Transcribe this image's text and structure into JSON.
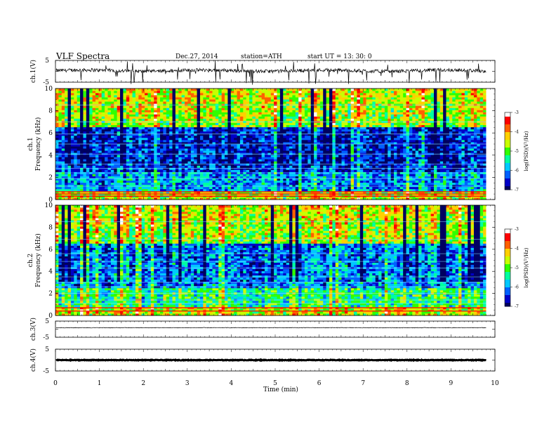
{
  "header": {
    "title": "VLF  Spectra",
    "date": "Dec.27, 2014",
    "station": "station=ATH",
    "start": "start  UT  =   13: 30: 0"
  },
  "chart_data": [
    {
      "type": "line",
      "panel": "ch1-waveform",
      "ylabel": "ch.1(V)",
      "yticks": [
        "5",
        "-5"
      ],
      "ylim": [
        -5,
        5
      ],
      "description_level": "noisy trace near +1 with downward spikes"
    },
    {
      "type": "heatmap",
      "panel": "ch1-spectrogram",
      "ylabel": [
        "ch.1",
        "Frequency  (kHz)"
      ],
      "yticks": [
        "0",
        "2",
        "4",
        "6",
        "8",
        "10"
      ],
      "ylim": [
        0,
        10
      ],
      "colorbar": {
        "label": "log(PSD)(V²/Hz)",
        "ticks": [
          "-3",
          "-4",
          "-5",
          "-6",
          "-7"
        ],
        "range": [
          -7,
          -3
        ]
      }
    },
    {
      "type": "heatmap",
      "panel": "ch2-spectrogram",
      "ylabel": [
        "ch.2",
        "Frequency  (kHz)"
      ],
      "yticks": [
        "0",
        "2",
        "4",
        "6",
        "8",
        "10"
      ],
      "ylim": [
        0,
        10
      ],
      "colorbar": {
        "label": "log(PSD)(V²/Hz)",
        "ticks": [
          "-3",
          "-4",
          "-5",
          "-6",
          "-7"
        ],
        "range": [
          -7,
          -3
        ]
      }
    },
    {
      "type": "line",
      "panel": "ch3-waveform",
      "ylabel": "ch.3(V)",
      "yticks": [
        "5",
        "-5"
      ],
      "ylim": [
        -5,
        5
      ]
    },
    {
      "type": "line",
      "panel": "ch4-waveform",
      "ylabel": "ch.4(V)",
      "yticks": [
        "5",
        "-5"
      ],
      "ylim": [
        -5,
        5
      ]
    }
  ],
  "xaxis": {
    "label": "Time  (min)",
    "ticks": [
      "0",
      "1",
      "2",
      "3",
      "4",
      "5",
      "6",
      "7",
      "8",
      "9",
      "10"
    ],
    "xlim": [
      0,
      10
    ],
    "data_end": 9.8
  },
  "colors": {
    "scale": [
      "#000060",
      "#0000c8",
      "#0060ff",
      "#00c8ff",
      "#00ffa0",
      "#30ff00",
      "#c8ff00",
      "#ffd000",
      "#ff6000",
      "#ff0000",
      "#ffffff"
    ]
  }
}
